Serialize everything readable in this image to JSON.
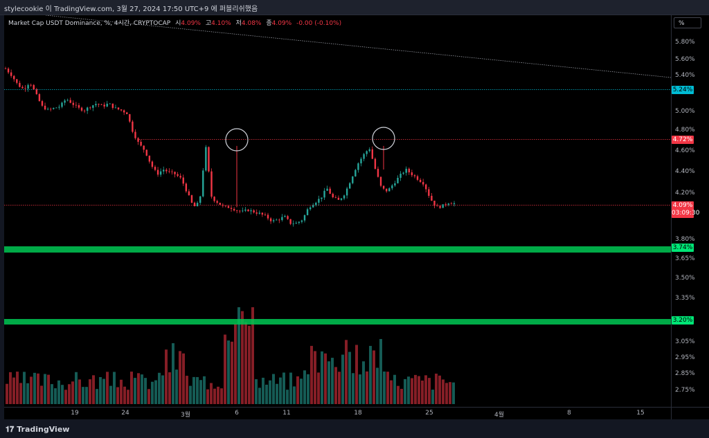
{
  "header": {
    "attribution": "stylecookie 이 TradingView.com, 3월 27, 2024 17:50 UTC+9 에 퍼블리쉬했음"
  },
  "legend": {
    "symbol": "Market Cap USDT Dominance, %, 4시간, CRYPTOCAP",
    "open_label": "시",
    "open": "4.09%",
    "high_label": "고",
    "high": "4.10%",
    "low_label": "저",
    "low": "4.08%",
    "close_label": "종",
    "close": "4.09%",
    "change": "-0.00 (-0.10%)"
  },
  "scale_mode_button": "%",
  "price_axis": {
    "ticks": [
      "5.80%",
      "5.60%",
      "5.40%",
      "5.00%",
      "4.80%",
      "4.60%",
      "4.40%",
      "4.20%",
      "3.80%",
      "3.65%",
      "3.50%",
      "3.35%",
      "3.05%",
      "2.95%",
      "2.85%",
      "2.75%"
    ]
  },
  "price_badges": {
    "level_524": "5.24%",
    "level_472": "4.72%",
    "current_price": "4.09%",
    "countdown": "03:09:30",
    "support_374": "3.74%",
    "support_320": "3.20%"
  },
  "time_axis": {
    "labels": [
      "19",
      "24",
      "3월",
      "6",
      "11",
      "18",
      "25",
      "4월",
      "8",
      "15"
    ]
  },
  "footer": {
    "brand": "TradingView"
  },
  "colors": {
    "up": "#26a69a",
    "down": "#f23645",
    "cyan_line": "#00bcd4",
    "green_zone": "#00c853",
    "red_line": "#f23645"
  },
  "icons": {
    "brand_logo": "tradingview-logo-icon",
    "markers": "circle-highlight-icon"
  },
  "chart_data": {
    "type": "candlestick",
    "series_unit": "%",
    "close_path": [
      5.52,
      5.45,
      5.35,
      5.3,
      5.38,
      5.25,
      5.12,
      5.08,
      5.1,
      5.12,
      5.2,
      5.15,
      5.1,
      5.08,
      5.12,
      5.15,
      5.12,
      5.15,
      5.1,
      5.08,
      5.05,
      4.85,
      4.72,
      4.65,
      4.5,
      4.4,
      4.45,
      4.42,
      4.4,
      4.35,
      4.2,
      4.05,
      4.1,
      4.7,
      4.15,
      4.1,
      4.05,
      4.05,
      4.02,
      4.0,
      4.02,
      4.0,
      3.98,
      3.95,
      3.9,
      3.92,
      3.95,
      3.88,
      3.88,
      3.92,
      4.05,
      4.1,
      4.15,
      4.25,
      4.15,
      4.12,
      4.2,
      4.35,
      4.5,
      4.6,
      4.68,
      4.45,
      4.25,
      4.22,
      4.3,
      4.38,
      4.45,
      4.4,
      4.35,
      4.3,
      4.15,
      4.05,
      4.06,
      4.1,
      4.09
    ],
    "horizontal_levels": [
      5.24,
      4.72,
      4.09,
      3.74,
      3.2
    ],
    "current_price": 4.09
  }
}
